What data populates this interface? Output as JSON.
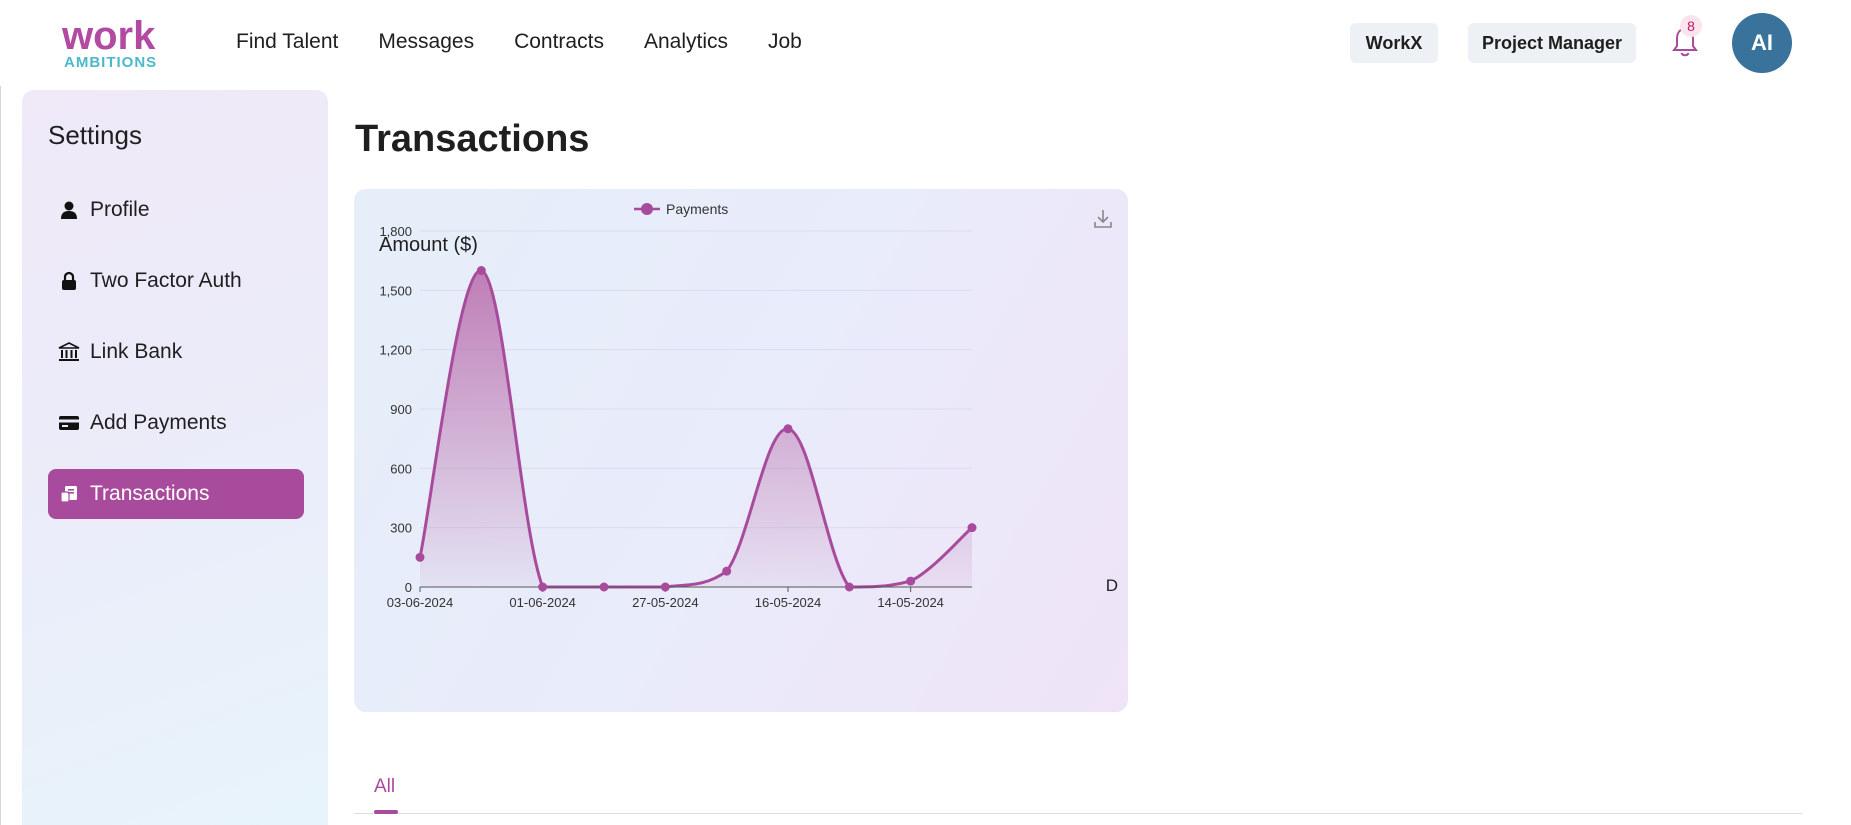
{
  "brand": {
    "logo_top": "work",
    "logo_bottom": "AMBITIONS",
    "primary_color": "#a94b9d",
    "accent_color": "#4cb9c9"
  },
  "nav": {
    "items": [
      "Find Talent",
      "Messages",
      "Contracts",
      "Analytics",
      "Job"
    ]
  },
  "header": {
    "workspace_label": "WorkX",
    "role_label": "Project Manager",
    "notification_count": "8",
    "avatar_initials": "AI",
    "avatar_color": "#39729b"
  },
  "sidebar": {
    "title": "Settings",
    "items": [
      {
        "label": "Profile",
        "icon": "user-icon"
      },
      {
        "label": "Two Factor Auth",
        "icon": "lock-icon"
      },
      {
        "label": "Link Bank",
        "icon": "bank-icon"
      },
      {
        "label": "Add Payments",
        "icon": "credit-card-icon"
      },
      {
        "label": "Transactions",
        "icon": "receipt-icon",
        "active": true
      }
    ]
  },
  "page": {
    "title": "Transactions"
  },
  "chart_data": {
    "type": "area",
    "ylabel": "Amount ($)",
    "legend": "top-center",
    "grid": true,
    "x_tick_labels": [
      "03-06-2024",
      "01-06-2024",
      "27-05-2024",
      "16-05-2024",
      "14-05-2024"
    ],
    "x_axis_truncated_label": "D",
    "yticks": [
      "0",
      "300",
      "600",
      "900",
      "1,200",
      "1,500",
      "1,800"
    ],
    "ylim": [
      0,
      1800
    ],
    "series": [
      {
        "name": "Payments",
        "color": "#a94b9d",
        "values": [
          150,
          1600,
          0,
          0,
          0,
          80,
          800,
          0,
          30,
          300
        ]
      }
    ],
    "download_icon": "download-icon"
  },
  "tabs": {
    "items": [
      "All"
    ],
    "active": "All"
  }
}
